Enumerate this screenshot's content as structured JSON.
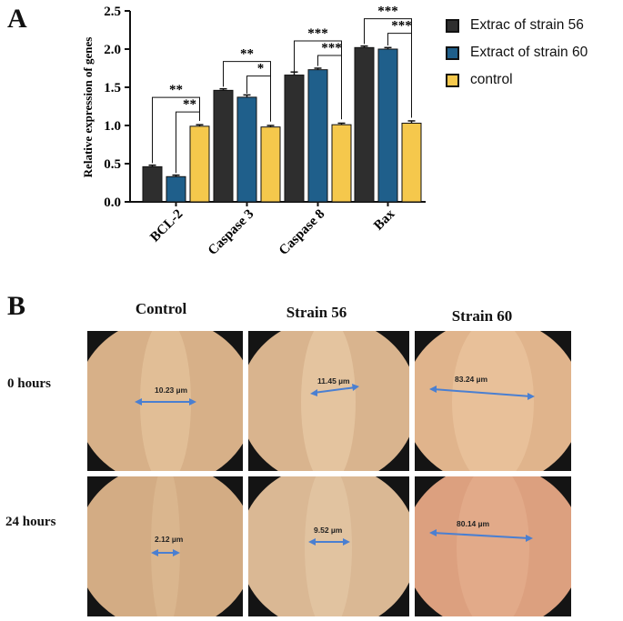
{
  "panel_a_label": "A",
  "panel_b_label": "B",
  "colors": {
    "extract56": "#2e2e2e",
    "extract60": "#1f5f8b",
    "control": "#f5c84c",
    "arrow": "#4a7fd1"
  },
  "chart_data": {
    "type": "bar",
    "ylabel": "Relative expression of genes",
    "ylim": [
      0,
      2.5
    ],
    "yticks": [
      "0.0",
      "0.5",
      "1.0",
      "1.5",
      "2.0",
      "2.5"
    ],
    "categories": [
      "BCL-2",
      "Caspase 3",
      "Caspase 8",
      "Bax"
    ],
    "series": [
      {
        "name": "Extrac of strain 56",
        "values": [
          0.46,
          1.46,
          1.66,
          2.02
        ],
        "errors": [
          0.02,
          0.02,
          0.04,
          0.02
        ]
      },
      {
        "name": "Extract of strain 60",
        "values": [
          0.33,
          1.37,
          1.73,
          2.0
        ],
        "errors": [
          0.02,
          0.03,
          0.02,
          0.02
        ]
      },
      {
        "name": "control",
        "values": [
          0.99,
          0.98,
          1.01,
          1.03
        ],
        "errors": [
          0.02,
          0.02,
          0.02,
          0.03
        ]
      }
    ],
    "significance": [
      {
        "category": "BCL-2",
        "outer": "**",
        "inner": "**"
      },
      {
        "category": "Caspase 3",
        "outer": "**",
        "inner": "*"
      },
      {
        "category": "Caspase 8",
        "outer": "***",
        "inner": "***"
      },
      {
        "category": "Bax",
        "outer": "***",
        "inner": "***"
      }
    ],
    "legend_position": "top-right"
  },
  "scratch": {
    "columns": [
      "Control",
      "Strain 56",
      "Strain 60"
    ],
    "rows": [
      "0 hours",
      "24 hours"
    ],
    "measurements": [
      [
        "10.23 µm",
        "11.45 µm",
        "83.24 µm"
      ],
      [
        "2.12 µm",
        "9.52 µm",
        "80.14 µm"
      ]
    ]
  }
}
